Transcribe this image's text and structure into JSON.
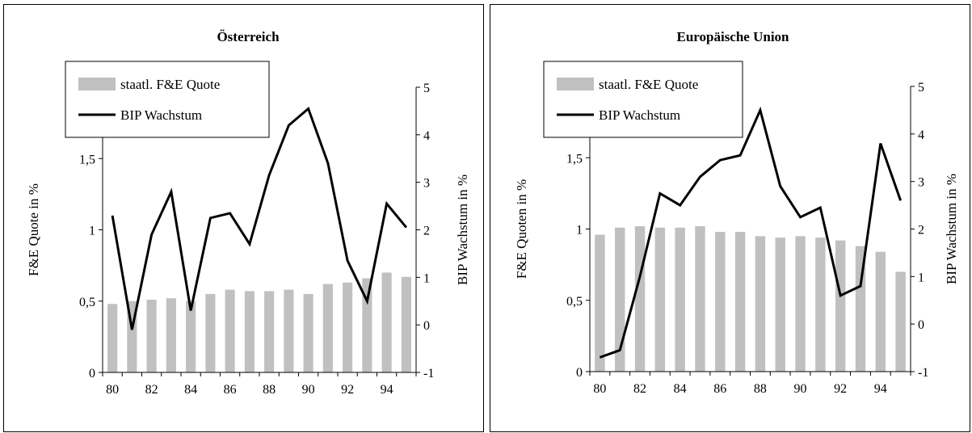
{
  "chart_data": [
    {
      "type": "bar+line",
      "title": "Österreich",
      "xlabel": "",
      "ylabel": "F&E Quote in %",
      "y2label": "BIP Wachstum in %",
      "x": [
        80,
        81,
        82,
        83,
        84,
        85,
        86,
        87,
        88,
        89,
        90,
        91,
        92,
        93,
        94,
        95
      ],
      "x_tick_labels": [
        "80",
        "82",
        "84",
        "86",
        "88",
        "90",
        "92",
        "94"
      ],
      "y_ticks": [
        "0",
        "0,5",
        "1",
        "1,5"
      ],
      "y2_ticks": [
        "-1",
        "0",
        "1",
        "2",
        "3",
        "4",
        "5"
      ],
      "ylim": [
        0,
        2.0
      ],
      "y2lim": [
        -1,
        5
      ],
      "grid": false,
      "legend_position": "top-left",
      "series": [
        {
          "name": "staatl. F&E Quote",
          "type": "bar",
          "axis": "left",
          "color": "#c0c0c0",
          "values": [
            0.48,
            0.5,
            0.51,
            0.52,
            0.5,
            0.55,
            0.58,
            0.57,
            0.57,
            0.58,
            0.55,
            0.62,
            0.63,
            0.66,
            0.7,
            0.67
          ]
        },
        {
          "name": "BIP Wachstum",
          "type": "line",
          "axis": "right",
          "color": "#000000",
          "values": [
            2.3,
            -0.1,
            1.9,
            2.8,
            0.3,
            2.25,
            2.35,
            1.7,
            3.15,
            4.2,
            4.55,
            3.4,
            1.35,
            0.5,
            2.55,
            2.05
          ]
        }
      ]
    },
    {
      "type": "bar+line",
      "title": "Europäische Union",
      "xlabel": "",
      "ylabel": "F&E Quoten in %",
      "y2label": "BIP Wachstum in %",
      "x": [
        80,
        81,
        82,
        83,
        84,
        85,
        86,
        87,
        88,
        89,
        90,
        91,
        92,
        93,
        94,
        95
      ],
      "x_tick_labels": [
        "80",
        "82",
        "84",
        "86",
        "88",
        "90",
        "92",
        "94"
      ],
      "y_ticks": [
        "0",
        "0,5",
        "1",
        "1,5"
      ],
      "y2_ticks": [
        "-1",
        "0",
        "1",
        "2",
        "3",
        "4",
        "5"
      ],
      "ylim": [
        0,
        2.0
      ],
      "y2lim": [
        -1,
        5
      ],
      "grid": false,
      "legend_position": "top-left",
      "series": [
        {
          "name": "staatl. F&E Quote",
          "type": "bar",
          "axis": "left",
          "color": "#c0c0c0",
          "values": [
            0.96,
            1.01,
            1.02,
            1.01,
            1.01,
            1.02,
            0.98,
            0.98,
            0.95,
            0.94,
            0.95,
            0.94,
            0.92,
            0.88,
            0.84,
            0.7
          ]
        },
        {
          "name": "BIP Wachstum",
          "type": "line",
          "axis": "right",
          "color": "#000000",
          "values": [
            -0.7,
            -0.55,
            1.0,
            2.75,
            2.5,
            3.1,
            3.45,
            3.55,
            4.5,
            2.9,
            2.25,
            2.45,
            0.6,
            0.8,
            3.8,
            2.6
          ]
        }
      ]
    }
  ]
}
